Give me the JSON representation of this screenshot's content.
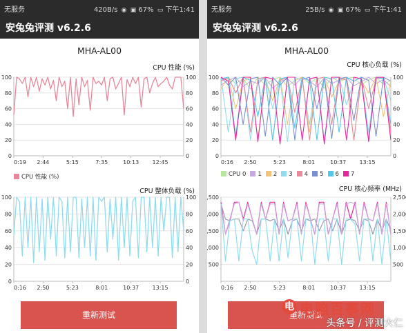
{
  "left": {
    "status": {
      "carrier": "无服务",
      "speed": "420B/s",
      "battery": "67%",
      "time": "下午1:41"
    },
    "app_title": "安兔兔评测 v6.2.6",
    "model": "MHA-AL00",
    "chart1": {
      "title": "CPU 性能 (%)",
      "legend": "CPU 性能 (%)",
      "color": "#e8879a",
      "yticks": [
        "100",
        "80",
        "60",
        "40",
        "20",
        "0"
      ],
      "xticks": [
        "0:19",
        "2:44",
        "5:15",
        "7:35",
        "10:13",
        "12:45"
      ]
    },
    "chart2": {
      "title": "CPU 整体负载 (%)",
      "color": "#8fdcef",
      "yticks": [
        "100",
        "80",
        "60",
        "40",
        "20",
        "0"
      ],
      "xticks": [
        "0:16",
        "2:50",
        "5:23",
        "8:01",
        "10:37",
        "13:15"
      ]
    },
    "retest_button": "重新测试"
  },
  "right": {
    "status": {
      "carrier": "无服务",
      "speed": "25B/s",
      "battery": "67%",
      "time": "下午1:41"
    },
    "app_title": "安兔兔评测 v6.2.6",
    "model": "MHA-AL00",
    "chart3": {
      "title": "CPU 核心负载 (%)",
      "yticks": [
        "100",
        "80",
        "60",
        "40",
        "20",
        "0"
      ],
      "xticks": [
        "0:16",
        "2:50",
        "5:23",
        "8:01",
        "10:37",
        "13:15"
      ],
      "legend": [
        {
          "name": "CPU 0",
          "color": "#b6e6a0"
        },
        {
          "name": "1",
          "color": "#c7a8e0"
        },
        {
          "name": "2",
          "color": "#f3c27a"
        },
        {
          "name": "3",
          "color": "#8fdcef"
        },
        {
          "name": "4",
          "color": "#e88a9a"
        },
        {
          "name": "5",
          "color": "#7b8fcf"
        },
        {
          "name": "6",
          "color": "#52c7e8"
        },
        {
          "name": "7",
          "color": "#e6279a"
        }
      ]
    },
    "chart4": {
      "title": "CPU 核心频率 (MHz)",
      "yticks": [
        "2,500",
        "2,000",
        "1,500",
        "1,000",
        "500"
      ],
      "xticks": [
        "0:16",
        "2:50",
        "5:23",
        "8:01",
        "10:37",
        "13:15"
      ]
    },
    "watermark": {
      "logo": "电",
      "name": "电脑百事网",
      "sub": "PC841.COM",
      "author": "头条号 / 评测大仁"
    }
  },
  "chart_data": [
    {
      "type": "line",
      "title": "CPU 性能 (%)",
      "x_ticks": [
        "0:19",
        "2:44",
        "5:15",
        "7:35",
        "10:13",
        "12:45"
      ],
      "ylim": [
        0,
        100
      ],
      "series": [
        {
          "name": "CPU 性能 (%)",
          "values": [
            52,
            100,
            98,
            92,
            100,
            75,
            100,
            88,
            100,
            82,
            98,
            90,
            100,
            85,
            96,
            70,
            100,
            88,
            95,
            60,
            100,
            50,
            98,
            65,
            100,
            88,
            96,
            58,
            100,
            92,
            95,
            90,
            100,
            70,
            98,
            100,
            85,
            92,
            100,
            52,
            97,
            88,
            100,
            92,
            100,
            62,
            98,
            100,
            80,
            92,
            100,
            88,
            92,
            95,
            100,
            90,
            85,
            100,
            100,
            100,
            60
          ]
        }
      ]
    },
    {
      "type": "line",
      "title": "CPU 整体负载 (%)",
      "x_ticks": [
        "0:16",
        "2:50",
        "5:23",
        "8:01",
        "10:37",
        "13:15"
      ],
      "ylim": [
        0,
        100
      ],
      "series": [
        {
          "values": [
            55,
            100,
            95,
            30,
            100,
            40,
            100,
            22,
            100,
            35,
            98,
            25,
            100,
            50,
            100,
            30,
            100,
            95,
            28,
            100,
            35,
            100,
            100,
            28,
            98,
            40,
            100,
            30,
            100,
            25,
            100,
            95,
            100,
            35,
            98,
            50,
            100,
            25,
            100,
            40,
            100,
            30,
            95,
            100,
            28,
            100,
            100,
            35,
            100,
            40,
            100,
            30,
            100,
            60,
            100,
            100,
            28,
            100,
            35,
            100,
            60
          ]
        }
      ]
    },
    {
      "type": "line",
      "title": "CPU 核心负载 (%)",
      "x_ticks": [
        "0:16",
        "2:50",
        "5:23",
        "8:01",
        "10:37",
        "13:15"
      ],
      "ylim": [
        0,
        100
      ],
      "series": [
        {
          "name": "CPU 0",
          "values": [
            95,
            100,
            92,
            98,
            85,
            100,
            90,
            97,
            100,
            88,
            96,
            100,
            92,
            99,
            86,
            100,
            94,
            98,
            100,
            90,
            97,
            100,
            91,
            96
          ]
        },
        {
          "name": "1",
          "values": [
            90,
            96,
            100,
            88,
            95,
            92,
            100,
            86,
            94,
            98,
            90,
            100,
            95,
            88,
            99,
            92,
            96,
            100,
            89,
            94,
            100,
            92,
            97,
            88
          ]
        },
        {
          "name": "2",
          "values": [
            85,
            100,
            60,
            95,
            100,
            20,
            98,
            70,
            100,
            40,
            96,
            100,
            30,
            98,
            100,
            75,
            95,
            100,
            20,
            96,
            80,
            100,
            50,
            95
          ]
        },
        {
          "name": "3",
          "values": [
            100,
            30,
            98,
            100,
            20,
            95,
            100,
            60,
            98,
            18,
            100,
            95,
            40,
            100,
            20,
            98,
            100,
            65,
            95,
            100,
            30,
            98,
            100,
            70
          ]
        },
        {
          "name": "4",
          "values": [
            95,
            100,
            80,
            100,
            30,
            98,
            100,
            20,
            96,
            100,
            55,
            100,
            20,
            98,
            100,
            40,
            100,
            96,
            20,
            100,
            60,
            98,
            100,
            30
          ]
        },
        {
          "name": "5",
          "values": [
            100,
            90,
            100,
            40,
            98,
            100,
            25,
            100,
            90,
            100,
            20,
            97,
            100,
            60,
            100,
            22,
            98,
            100,
            45,
            100,
            96,
            25,
            100,
            95
          ]
        },
        {
          "name": "6",
          "values": [
            98,
            100,
            25,
            100,
            96,
            50,
            100,
            20,
            98,
            100,
            35,
            100,
            96,
            20,
            100,
            98,
            30,
            100,
            95,
            100,
            20,
            100,
            98,
            40
          ]
        },
        {
          "name": "7",
          "values": [
            100,
            95,
            20,
            100,
            100,
            18,
            100,
            98,
            15,
            100,
            100,
            20,
            98,
            100,
            15,
            100,
            100,
            20,
            100,
            98,
            18,
            100,
            100,
            20
          ]
        }
      ]
    },
    {
      "type": "line",
      "title": "CPU 核心频率 (MHz)",
      "x_ticks": [
        "0:16",
        "2:50",
        "5:23",
        "8:01",
        "10:37",
        "13:15"
      ],
      "ylim": [
        0,
        2500
      ],
      "series": [
        {
          "values": [
            2350,
            1400,
            1800,
            2350,
            2350,
            1850,
            2350,
            1850,
            1400,
            2350,
            1850,
            2350,
            2350,
            1400,
            2350,
            1800,
            1850,
            2350,
            1400,
            2350,
            1850,
            1400,
            2350,
            2350,
            1400,
            1850,
            2350,
            1400,
            2350,
            1850,
            2350,
            1400,
            2350,
            1850,
            1800,
            2350,
            1400,
            2350,
            1400
          ]
        },
        {
          "values": [
            2300,
            1850,
            1800,
            1850,
            1850,
            1500,
            1850,
            1800,
            1400,
            1850,
            1850,
            1800,
            1850,
            1500,
            1850,
            1400,
            1800,
            1850,
            1500,
            1850,
            1800,
            1850,
            1500,
            1800,
            1850,
            1500,
            1850,
            1400,
            1800,
            1850,
            1800,
            1500,
            1850,
            1800,
            1400,
            1850,
            1500,
            1850,
            1500
          ]
        },
        {
          "values": [
            2300,
            600,
            1800,
            1850,
            600,
            1850,
            1850,
            900,
            500,
            1850,
            1850,
            600,
            1850,
            600,
            1850,
            700,
            1850,
            1850,
            600,
            1850,
            1850,
            500,
            1850,
            1850,
            600,
            1850,
            1850,
            500,
            1850,
            1850,
            1700,
            600,
            1850,
            1850,
            600,
            1850,
            500,
            1850,
            600
          ]
        },
        {
          "values": [
            2250,
            1400,
            1850,
            2300,
            2350,
            1800,
            2300,
            1850,
            1400,
            2300,
            1850,
            2300,
            2300,
            1400,
            2300,
            1800,
            1850,
            2300,
            1400,
            2300,
            1850,
            1400,
            2300,
            2300,
            1400,
            1850,
            2300,
            1400,
            2300,
            2350,
            2300,
            1400,
            2300,
            1850,
            1800,
            2300,
            1400,
            2300,
            1400
          ]
        }
      ]
    }
  ]
}
